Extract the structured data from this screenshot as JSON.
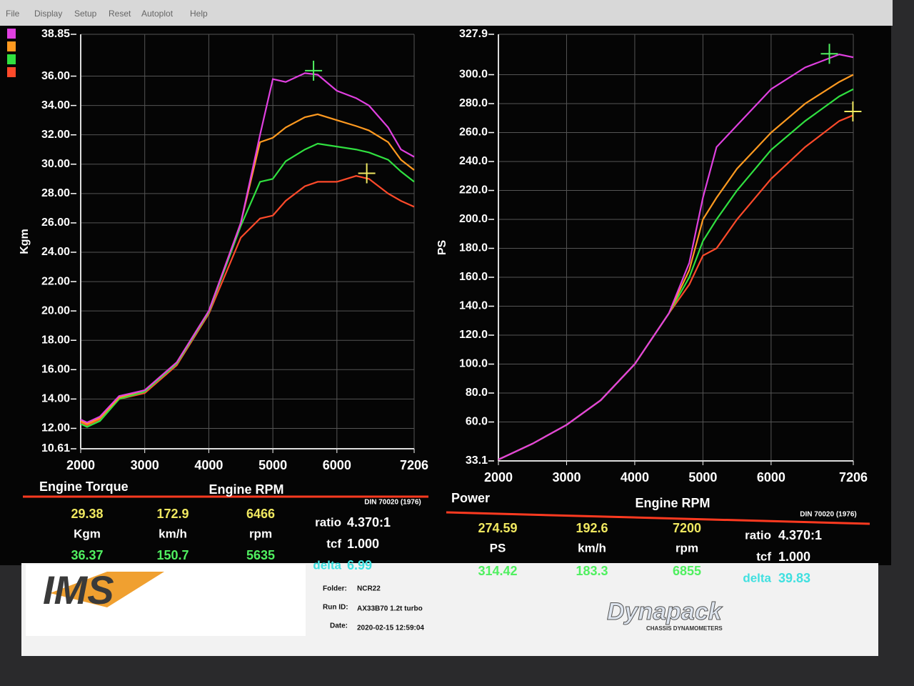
{
  "menu": [
    "File",
    "Display",
    "Setup",
    "Reset",
    "Autoplot",
    "Help"
  ],
  "chart_data": [
    {
      "type": "line",
      "caption": "Engine Torque",
      "xlabel": "Engine RPM",
      "ylabel": "Kgm",
      "standard": "DIN 70020 (1976)",
      "xlim": [
        2000,
        7206
      ],
      "xticks": [
        2000,
        3000,
        4000,
        5000,
        6000,
        7206
      ],
      "ylim": [
        10.61,
        38.85
      ],
      "yticks": [
        {
          "value": 10.61,
          "label": "10.61"
        },
        {
          "value": 12,
          "label": "12.00"
        },
        {
          "value": 14,
          "label": "14.00"
        },
        {
          "value": 16,
          "label": "16.00"
        },
        {
          "value": 18,
          "label": "18.00"
        },
        {
          "value": 20,
          "label": "20.00"
        },
        {
          "value": 22,
          "label": "22.00"
        },
        {
          "value": 24,
          "label": "24.00"
        },
        {
          "value": 26,
          "label": "26.00"
        },
        {
          "value": 28,
          "label": "28.00"
        },
        {
          "value": 30,
          "label": "30.00"
        },
        {
          "value": 32,
          "label": "32.00"
        },
        {
          "value": 34,
          "label": "34.00"
        },
        {
          "value": 36,
          "label": "36.00"
        },
        {
          "value": 38.85,
          "label": "38.85"
        }
      ],
      "grid": true,
      "x": [
        2000,
        2100,
        2300,
        2600,
        3000,
        3500,
        4000,
        4500,
        4800,
        5000,
        5200,
        5500,
        5700,
        6000,
        6300,
        6500,
        6800,
        7000,
        7206
      ],
      "series": [
        {
          "color": "#ff4a2a",
          "values": [
            12.4,
            12.2,
            12.6,
            14.0,
            14.4,
            16.3,
            19.8,
            25.0,
            26.3,
            26.5,
            27.5,
            28.5,
            28.8,
            28.8,
            29.2,
            29.0,
            28.0,
            27.5,
            27.1
          ]
        },
        {
          "color": "#30e040",
          "values": [
            12.3,
            12.1,
            12.5,
            14.0,
            14.5,
            16.4,
            19.9,
            25.8,
            28.8,
            29.0,
            30.2,
            31.0,
            31.4,
            31.2,
            31.0,
            30.8,
            30.3,
            29.5,
            28.8
          ]
        },
        {
          "color": "#ff9a20",
          "values": [
            12.5,
            12.3,
            12.7,
            14.1,
            14.6,
            16.5,
            20.0,
            26.0,
            31.5,
            31.8,
            32.5,
            33.2,
            33.4,
            33.0,
            32.6,
            32.3,
            31.5,
            30.3,
            29.6
          ]
        },
        {
          "color": "#e040e0",
          "values": [
            12.6,
            12.4,
            12.8,
            14.2,
            14.6,
            16.5,
            20.0,
            26.0,
            32.0,
            35.8,
            35.6,
            36.2,
            36.1,
            35.0,
            34.5,
            34.0,
            32.5,
            31.0,
            30.5
          ]
        }
      ],
      "readout": {
        "cursor_a": {
          "color": "#f0e860",
          "value": 29.38,
          "speed": 172.9,
          "rpm": 6466
        },
        "cursor_b": {
          "color": "#50f060",
          "value": 36.37,
          "speed": 150.7,
          "rpm": 5635
        },
        "unit": "Kgm",
        "speed_unit": "km/h",
        "rpm_unit": "rpm",
        "ratio_label": "ratio",
        "ratio": "4.370:1",
        "tcf_label": "tcf",
        "tcf": "1.000",
        "delta_label": "delta",
        "delta": 6.99
      }
    },
    {
      "type": "line",
      "caption": "Power",
      "xlabel": "Engine RPM",
      "ylabel": "PS",
      "standard": "DIN 70020 (1976)",
      "xlim": [
        2000,
        7206
      ],
      "xticks": [
        2000,
        3000,
        4000,
        5000,
        6000,
        7206
      ],
      "ylim": [
        33.1,
        327.9
      ],
      "yticks": [
        {
          "value": 33.1,
          "label": "33.1"
        },
        {
          "value": 60,
          "label": "60.0"
        },
        {
          "value": 80,
          "label": "80.0"
        },
        {
          "value": 100,
          "label": "100.0"
        },
        {
          "value": 120,
          "label": "120.0"
        },
        {
          "value": 140,
          "label": "140.0"
        },
        {
          "value": 160,
          "label": "160.0"
        },
        {
          "value": 180,
          "label": "180.0"
        },
        {
          "value": 200,
          "label": "200.0"
        },
        {
          "value": 220,
          "label": "220.0"
        },
        {
          "value": 240,
          "label": "240.0"
        },
        {
          "value": 260,
          "label": "260.0"
        },
        {
          "value": 280,
          "label": "280.0"
        },
        {
          "value": 300,
          "label": "300.0"
        },
        {
          "value": 327.9,
          "label": "327.9"
        }
      ],
      "grid": true,
      "x": [
        2000,
        2500,
        3000,
        3500,
        4000,
        4500,
        4800,
        5000,
        5200,
        5500,
        6000,
        6500,
        7000,
        7206
      ],
      "series": [
        {
          "color": "#ff4a2a",
          "values": [
            34,
            45,
            58,
            75,
            100,
            135,
            155,
            175,
            180,
            200,
            228,
            250,
            268,
            272
          ]
        },
        {
          "color": "#30e040",
          "values": [
            34,
            45,
            58,
            75,
            100,
            135,
            160,
            185,
            200,
            220,
            248,
            268,
            285,
            290
          ]
        },
        {
          "color": "#ff9a20",
          "values": [
            34,
            45,
            58,
            75,
            100,
            135,
            165,
            200,
            215,
            235,
            260,
            280,
            295,
            300
          ]
        },
        {
          "color": "#e040e0",
          "values": [
            34,
            45,
            58,
            75,
            100,
            135,
            170,
            215,
            250,
            265,
            290,
            305,
            314,
            312
          ]
        }
      ],
      "readout": {
        "cursor_a": {
          "color": "#f0e860",
          "value": 274.59,
          "speed": 192.6,
          "rpm": 7200
        },
        "cursor_b": {
          "color": "#50f060",
          "value": 314.42,
          "speed": 183.3,
          "rpm": 6855
        },
        "unit": "PS",
        "speed_unit": "km/h",
        "rpm_unit": "rpm",
        "ratio_label": "ratio",
        "ratio": "4.370:1",
        "tcf_label": "tcf",
        "tcf": "1.000",
        "delta_label": "delta",
        "delta": 39.83
      }
    }
  ],
  "footer": {
    "folder_label": "Folder:",
    "folder": "NCR22",
    "run_label": "Run ID:",
    "run": "AX33B70 1.2t turbo",
    "date_label": "Date:",
    "date": "2020-02-15 12:59:04",
    "logo_left": "IMS",
    "logo_right": "Dynapack",
    "logo_right_sub": "CHASSIS DYNAMOMETERS"
  }
}
